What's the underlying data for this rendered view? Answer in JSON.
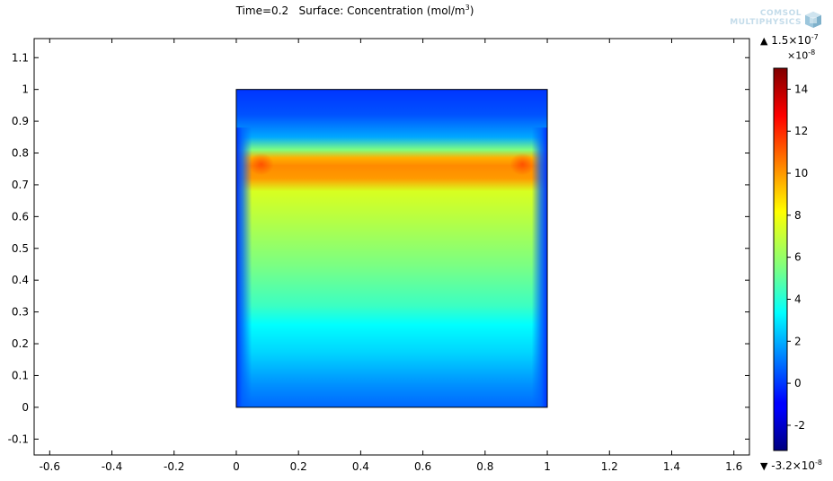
{
  "title": {
    "prefix": "Time=0.2   Surface: Concentration (mol/m",
    "superscript": "3",
    "suffix": ")"
  },
  "logo": {
    "line1": "COMSOL",
    "line2": "MULTIPHYSICS",
    "icon": "comsol-cube-icon",
    "color": "#c4dcea"
  },
  "chart_data": {
    "type": "heatmap",
    "title": "Time=0.2   Surface: Concentration (mol/m3)",
    "xlabel": "",
    "ylabel": "",
    "xlim": [
      -0.65,
      1.65
    ],
    "ylim": [
      -0.15,
      1.16
    ],
    "x_ticks": [
      -0.6,
      -0.4,
      -0.2,
      0,
      0.2,
      0.4,
      0.6,
      0.8,
      1,
      1.2,
      1.4,
      1.6
    ],
    "x_tick_labels": [
      "-0.6",
      "-0.4",
      "-0.2",
      "0",
      "0.2",
      "0.4",
      "0.6",
      "0.8",
      "1",
      "1.2",
      "1.4",
      "1.6"
    ],
    "y_ticks": [
      -0.1,
      0,
      0.1,
      0.2,
      0.3,
      0.4,
      0.5,
      0.6,
      0.7,
      0.8,
      0.9,
      1,
      1.1
    ],
    "y_tick_labels": [
      "-0.1",
      "0",
      "0.1",
      "0.2",
      "0.3",
      "0.4",
      "0.5",
      "0.6",
      "0.7",
      "0.8",
      "0.9",
      "1",
      "1.1"
    ],
    "domain": {
      "x": [
        0,
        1
      ],
      "y": [
        0,
        1
      ]
    },
    "colormap": "rainbow",
    "color_range": [
      -3.2e-08,
      1.5e-07
    ],
    "colorbar": {
      "exponent_label": "×10",
      "exponent": "-8",
      "ticks": [
        -2,
        0,
        2,
        4,
        6,
        8,
        10,
        12,
        14
      ],
      "tick_labels": [
        "-2",
        "0",
        "2",
        "4",
        "6",
        "8",
        "10",
        "12",
        "14"
      ],
      "max_label": "1.5×10",
      "max_exp": "-7",
      "min_label": "-3.2×10",
      "min_exp": "-8"
    },
    "profile_description_values": {
      "top_boundary_y1": -0.3,
      "band_peak_y": 0.76,
      "band_peak_value": 12,
      "center_value": 6.5,
      "bottom_value": 1.0
    },
    "grid": false
  }
}
